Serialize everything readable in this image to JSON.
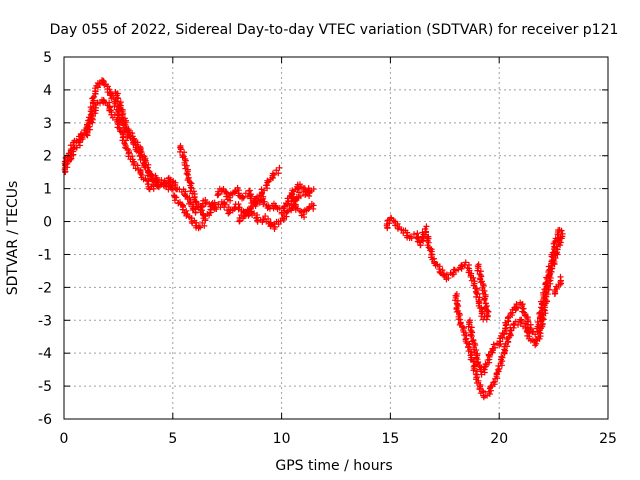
{
  "chart_data": {
    "type": "scatter",
    "title": "Day 055 of 2022, Sidereal Day-to-day VTEC variation (SDTVAR) for receiver p121",
    "xlabel": "GPS time / hours",
    "ylabel": "SDTVAR / TECUs",
    "xlim": [
      0,
      25
    ],
    "ylim": [
      -6,
      5
    ],
    "xticks": [
      0,
      5,
      10,
      15,
      20,
      25
    ],
    "yticks": [
      -6,
      -5,
      -4,
      -3,
      -2,
      -1,
      0,
      1,
      2,
      3,
      4,
      5
    ],
    "grid": true,
    "marker": "+",
    "series": [
      {
        "name": "SDTVAR",
        "color": "#ff0000",
        "tracks": [
          [
            [
              0.0,
              1.5
            ],
            [
              0.2,
              1.8
            ],
            [
              0.4,
              2.1
            ],
            [
              0.6,
              2.3
            ],
            [
              0.8,
              2.5
            ],
            [
              1.0,
              2.6
            ],
            [
              1.2,
              2.9
            ],
            [
              1.4,
              3.4
            ],
            [
              1.6,
              3.6
            ],
            [
              1.8,
              3.7
            ],
            [
              2.0,
              3.6
            ],
            [
              2.2,
              3.3
            ],
            [
              2.4,
              3.1
            ],
            [
              2.6,
              2.8
            ],
            [
              2.8,
              2.4
            ],
            [
              3.0,
              2.0
            ],
            [
              3.2,
              1.8
            ],
            [
              3.4,
              1.6
            ],
            [
              3.6,
              1.4
            ],
            [
              3.8,
              1.2
            ],
            [
              4.0,
              1.0
            ],
            [
              4.2,
              1.1
            ],
            [
              4.5,
              1.2
            ],
            [
              4.8,
              1.0
            ],
            [
              5.0,
              1.2
            ],
            [
              5.2,
              1.0
            ],
            [
              5.5,
              0.9
            ],
            [
              5.8,
              0.6
            ],
            [
              6.0,
              0.3
            ],
            [
              6.2,
              0.4
            ],
            [
              6.5,
              0.6
            ],
            [
              6.8,
              0.5
            ],
            [
              7.0,
              0.4
            ],
            [
              7.3,
              0.6
            ],
            [
              7.6,
              0.3
            ],
            [
              8.0,
              0.5
            ],
            [
              8.3,
              0.2
            ],
            [
              8.6,
              0.3
            ],
            [
              9.0,
              0.0
            ],
            [
              9.3,
              0.1
            ],
            [
              9.6,
              -0.2
            ],
            [
              9.9,
              0.0
            ],
            [
              10.2,
              0.2
            ],
            [
              10.5,
              0.5
            ],
            [
              10.8,
              0.8
            ],
            [
              11.1,
              0.9
            ],
            [
              11.4,
              1.0
            ]
          ],
          [
            [
              0.0,
              1.7
            ],
            [
              0.2,
              2.0
            ],
            [
              0.4,
              2.3
            ],
            [
              0.6,
              2.5
            ],
            [
              0.8,
              2.6
            ],
            [
              1.0,
              2.8
            ],
            [
              1.2,
              3.1
            ],
            [
              1.4,
              3.9
            ],
            [
              1.6,
              4.2
            ],
            [
              1.8,
              4.3
            ],
            [
              2.0,
              4.0
            ],
            [
              2.2,
              3.8
            ],
            [
              2.4,
              3.9
            ],
            [
              2.6,
              3.5
            ],
            [
              2.8,
              3.0
            ],
            [
              3.0,
              2.7
            ],
            [
              3.2,
              2.5
            ],
            [
              3.4,
              2.3
            ],
            [
              3.6,
              2.1
            ],
            [
              3.8,
              1.7
            ],
            [
              4.0,
              1.4
            ],
            [
              4.2,
              1.3
            ],
            [
              4.4,
              1.2
            ],
            [
              4.6,
              1.1
            ],
            [
              4.8,
              1.3
            ],
            [
              5.0,
              1.0
            ],
            [
              5.2,
              1.0
            ]
          ],
          [
            [
              2.3,
              3.7
            ],
            [
              2.6,
              3.1
            ],
            [
              2.9,
              2.7
            ],
            [
              3.2,
              2.4
            ],
            [
              3.5,
              2.0
            ],
            [
              3.8,
              1.6
            ],
            [
              4.1,
              1.2
            ],
            [
              4.4,
              1.0
            ]
          ],
          [
            [
              5.3,
              2.3
            ],
            [
              5.5,
              2.0
            ],
            [
              5.7,
              1.4
            ],
            [
              5.9,
              0.9
            ],
            [
              6.1,
              0.6
            ],
            [
              6.3,
              0.3
            ],
            [
              6.5,
              0.1
            ],
            [
              6.7,
              0.3
            ],
            [
              6.9,
              0.6
            ]
          ],
          [
            [
              5.0,
              0.8
            ],
            [
              5.3,
              0.6
            ],
            [
              5.6,
              0.3
            ],
            [
              5.9,
              0.0
            ],
            [
              6.2,
              -0.2
            ],
            [
              6.5,
              0.0
            ]
          ],
          [
            [
              7.0,
              0.8
            ],
            [
              7.3,
              1.0
            ],
            [
              7.6,
              0.7
            ],
            [
              7.9,
              1.0
            ],
            [
              8.2,
              0.7
            ],
            [
              8.5,
              0.9
            ],
            [
              8.8,
              0.5
            ],
            [
              9.1,
              0.7
            ],
            [
              9.4,
              0.4
            ],
            [
              9.7,
              0.5
            ],
            [
              10.0,
              0.3
            ],
            [
              10.3,
              0.6
            ],
            [
              10.6,
              1.0
            ],
            [
              10.9,
              1.1
            ],
            [
              11.2,
              0.8
            ],
            [
              11.5,
              1.0
            ]
          ],
          [
            [
              8.0,
              0.0
            ],
            [
              8.4,
              0.3
            ],
            [
              8.8,
              0.6
            ],
            [
              9.2,
              1.0
            ],
            [
              9.6,
              1.4
            ],
            [
              9.9,
              1.6
            ]
          ],
          [
            [
              10.4,
              0.8
            ],
            [
              10.7,
              0.4
            ],
            [
              11.0,
              0.2
            ],
            [
              11.3,
              0.5
            ],
            [
              11.5,
              0.4
            ]
          ],
          [
            [
              14.8,
              -0.2
            ],
            [
              15.0,
              0.1
            ],
            [
              15.3,
              -0.1
            ],
            [
              15.6,
              -0.3
            ],
            [
              15.9,
              -0.5
            ],
            [
              16.2,
              -0.4
            ],
            [
              16.4,
              -0.7
            ],
            [
              16.6,
              -0.2
            ],
            [
              16.8,
              -0.8
            ],
            [
              17.0,
              -1.2
            ],
            [
              17.3,
              -1.5
            ],
            [
              17.6,
              -1.7
            ],
            [
              17.8,
              -1.6
            ],
            [
              18.0,
              -1.5
            ],
            [
              18.2,
              -1.4
            ],
            [
              18.5,
              -1.3
            ],
            [
              18.7,
              -1.6
            ],
            [
              18.9,
              -2.0
            ],
            [
              19.1,
              -2.5
            ],
            [
              19.3,
              -3.0
            ]
          ],
          [
            [
              18.0,
              -2.2
            ],
            [
              18.1,
              -2.7
            ],
            [
              18.2,
              -3.0
            ],
            [
              18.4,
              -3.4
            ],
            [
              18.6,
              -3.8
            ],
            [
              18.8,
              -4.3
            ],
            [
              19.0,
              -4.8
            ],
            [
              19.2,
              -5.2
            ],
            [
              19.4,
              -5.3
            ],
            [
              19.6,
              -5.1
            ],
            [
              19.8,
              -4.8
            ],
            [
              20.0,
              -4.5
            ],
            [
              20.2,
              -4.0
            ],
            [
              20.4,
              -3.6
            ],
            [
              20.6,
              -3.2
            ],
            [
              20.8,
              -3.1
            ],
            [
              21.0,
              -3.0
            ],
            [
              21.2,
              -3.2
            ],
            [
              21.4,
              -3.5
            ],
            [
              21.6,
              -3.7
            ],
            [
              21.8,
              -3.6
            ],
            [
              22.0,
              -3.0
            ],
            [
              22.2,
              -2.2
            ],
            [
              22.4,
              -1.5
            ],
            [
              22.6,
              -1.0
            ],
            [
              22.8,
              -0.6
            ],
            [
              22.9,
              -0.3
            ]
          ],
          [
            [
              18.6,
              -3.0
            ],
            [
              18.8,
              -3.6
            ],
            [
              19.0,
              -4.2
            ],
            [
              19.2,
              -4.6
            ],
            [
              19.4,
              -4.4
            ],
            [
              19.6,
              -4.0
            ],
            [
              19.8,
              -3.8
            ],
            [
              20.0,
              -3.7
            ],
            [
              20.2,
              -3.4
            ],
            [
              20.4,
              -3.0
            ],
            [
              20.6,
              -2.7
            ],
            [
              20.8,
              -2.6
            ],
            [
              21.0,
              -2.5
            ],
            [
              21.2,
              -2.8
            ],
            [
              21.4,
              -3.2
            ],
            [
              21.6,
              -3.4
            ],
            [
              21.8,
              -3.2
            ],
            [
              22.0,
              -2.4
            ],
            [
              22.2,
              -1.8
            ],
            [
              22.4,
              -1.2
            ],
            [
              22.6,
              -0.6
            ],
            [
              22.8,
              -0.2
            ]
          ],
          [
            [
              19.0,
              -1.3
            ],
            [
              19.2,
              -1.8
            ],
            [
              19.4,
              -2.5
            ],
            [
              19.5,
              -3.0
            ]
          ],
          [
            [
              22.5,
              -2.2
            ],
            [
              22.7,
              -2.0
            ],
            [
              22.9,
              -1.7
            ]
          ]
        ]
      }
    ]
  }
}
